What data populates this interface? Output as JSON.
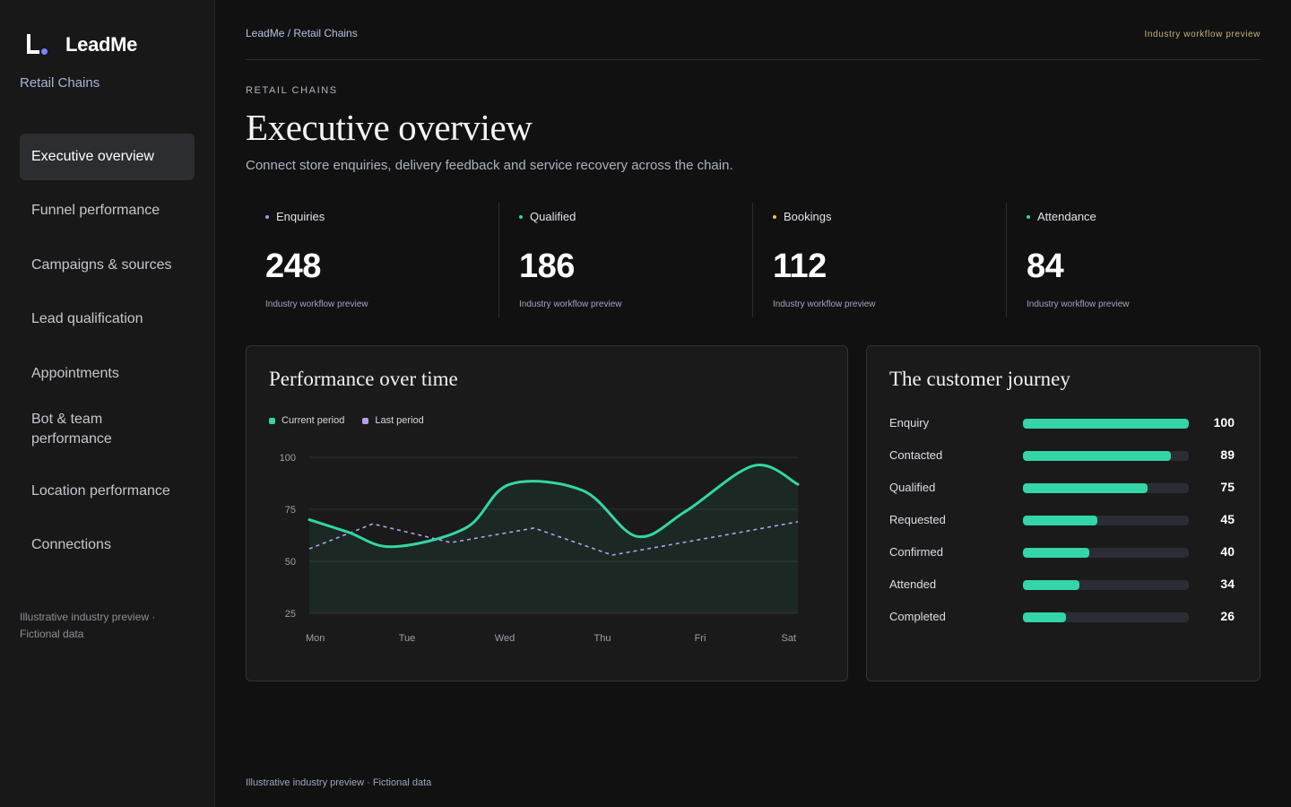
{
  "brand": {
    "name": "LeadMe",
    "subtitle": "Retail Chains",
    "accent": "#7c83ff"
  },
  "sidebar": {
    "items": [
      {
        "label": "Executive overview",
        "active": true
      },
      {
        "label": "Funnel performance",
        "active": false
      },
      {
        "label": "Campaigns & sources",
        "active": false
      },
      {
        "label": "Lead qualification",
        "active": false
      },
      {
        "label": "Appointments",
        "active": false
      },
      {
        "label": "Bot & team performance",
        "active": false
      },
      {
        "label": "Location performance",
        "active": false
      },
      {
        "label": "Connections",
        "active": false
      }
    ],
    "footer": "Illustrative industry preview · Fictional data"
  },
  "header": {
    "breadcrumb": "LeadMe / Retail Chains",
    "tag": "Industry workflow preview",
    "eyebrow": "RETAIL CHAINS",
    "title": "Executive overview",
    "description": "Connect store enquiries, delivery feedback and service recovery across the chain."
  },
  "kpis": [
    {
      "label": "Enquiries",
      "value": "248",
      "note": "Industry workflow preview",
      "dot_color": "#8ea0ff"
    },
    {
      "label": "Qualified",
      "value": "186",
      "note": "Industry workflow preview",
      "dot_color": "#34d5a7"
    },
    {
      "label": "Bookings",
      "value": "112",
      "note": "Industry workflow preview",
      "dot_color": "#f5c542"
    },
    {
      "label": "Attendance",
      "value": "84",
      "note": "Industry workflow preview",
      "dot_color": "#34d5a7"
    }
  ],
  "performance": {
    "title": "Performance over time",
    "legend": [
      {
        "label": "Current period",
        "color": "#34d5a7"
      },
      {
        "label": "Last period",
        "color": "#b99cf0"
      }
    ]
  },
  "chart_data": {
    "type": "line",
    "title": "Performance over time",
    "xlabel": "",
    "ylabel": "",
    "categories": [
      "Mon",
      "Tue",
      "Wed",
      "Thu",
      "Fri",
      "Sat"
    ],
    "y_ticks": [
      100,
      75,
      50,
      25
    ],
    "ylim": [
      25,
      100
    ],
    "grid": true,
    "legend_position": "top-left",
    "series": [
      {
        "name": "Current period",
        "color": "#34d5a7",
        "style": "solid-area",
        "x": [
          0,
          0.4,
          0.85,
          1.6,
          2.05,
          2.8,
          3.35,
          3.85,
          4.55,
          5.0
        ],
        "values": [
          70,
          64,
          57,
          66,
          87,
          84,
          62,
          74,
          96,
          87
        ]
      },
      {
        "name": "Last period",
        "color": "#b99cf0",
        "style": "dashed",
        "x": [
          0,
          0.65,
          1.45,
          2.3,
          3.1,
          4.3,
          5.0
        ],
        "values": [
          56,
          68,
          59,
          66,
          53,
          63,
          69
        ]
      }
    ]
  },
  "journey": {
    "title": "The customer journey",
    "max": 100,
    "bar_color": "#34d5a7",
    "rows": [
      {
        "label": "Enquiry",
        "value": 100
      },
      {
        "label": "Contacted",
        "value": 89
      },
      {
        "label": "Qualified",
        "value": 75
      },
      {
        "label": "Requested",
        "value": 45
      },
      {
        "label": "Confirmed",
        "value": 40
      },
      {
        "label": "Attended",
        "value": 34
      },
      {
        "label": "Completed",
        "value": 26
      }
    ]
  },
  "footer": "Illustrative industry preview · Fictional data"
}
